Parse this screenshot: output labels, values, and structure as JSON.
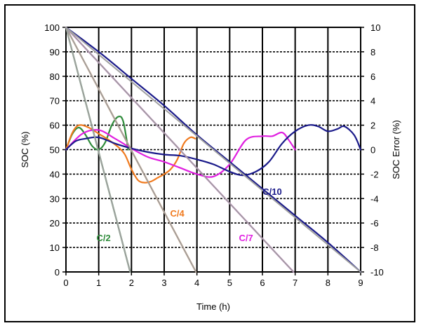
{
  "chart_data": {
    "type": "line",
    "title": "",
    "xlabel": "Time (h)",
    "ylabel": "SOC (%)",
    "y2label": "SOC Error (%)",
    "xlim": [
      0,
      9
    ],
    "ylim": [
      0,
      100
    ],
    "y2lim": [
      -10,
      10
    ],
    "grid": true,
    "xticks": [
      0,
      1,
      2,
      3,
      4,
      5,
      6,
      7,
      8,
      9
    ],
    "yticks": [
      0,
      10,
      20,
      30,
      40,
      50,
      60,
      70,
      80,
      90,
      100
    ],
    "y2ticks": [
      -10,
      -8,
      -6,
      -4,
      -2,
      0,
      2,
      4,
      6,
      8,
      10
    ],
    "series": [
      {
        "name": "C/2",
        "label": "C/2",
        "color": "#2e8b3a",
        "axis": "left",
        "x": [
          0,
          1.96
        ],
        "y": [
          100,
          0
        ]
      },
      {
        "name": "C/2 reference",
        "color": "#a0a0a0",
        "axis": "left",
        "x": [
          0,
          1.96
        ],
        "y": [
          100,
          0
        ]
      },
      {
        "name": "C/4",
        "label": "C/4",
        "color": "#f07a1e",
        "axis": "left",
        "x": [
          0,
          3.97
        ],
        "y": [
          100,
          0
        ]
      },
      {
        "name": "C/4 reference",
        "color": "#a0a0a0",
        "axis": "left",
        "x": [
          0,
          3.97
        ],
        "y": [
          100,
          0
        ]
      },
      {
        "name": "C/7",
        "label": "C/7",
        "color": "#e020e0",
        "axis": "left",
        "x": [
          0,
          6.95
        ],
        "y": [
          100,
          0
        ]
      },
      {
        "name": "C/7 reference",
        "color": "#a0a0a0",
        "axis": "left",
        "x": [
          0,
          6.95
        ],
        "y": [
          100,
          0
        ]
      },
      {
        "name": "C/10",
        "label": "C/10",
        "color": "#1a1a8a",
        "axis": "left",
        "x": [
          0,
          1,
          2,
          3,
          4,
          5,
          6,
          7,
          8,
          9
        ],
        "y": [
          100,
          90,
          79,
          68,
          56,
          45,
          34,
          23,
          12,
          0
        ]
      },
      {
        "name": "C/10 reference",
        "color": "#a0a0a0",
        "axis": "left",
        "x": [
          0,
          9
        ],
        "y": [
          100,
          0
        ]
      },
      {
        "name": "C/2 error",
        "color": "#2e8b3a",
        "axis": "right",
        "x": [
          0,
          0.2,
          0.4,
          0.6,
          0.8,
          1.0,
          1.2,
          1.4,
          1.6,
          1.75,
          1.9
        ],
        "y": [
          0,
          1.3,
          1.8,
          1.2,
          0.3,
          0,
          0.6,
          2.0,
          2.7,
          2.3,
          0
        ]
      },
      {
        "name": "C/4 error",
        "color": "#f07a1e",
        "axis": "right",
        "x": [
          0,
          0.2,
          0.4,
          0.7,
          1.0,
          1.3,
          1.6,
          1.8,
          2.0,
          2.2,
          2.4,
          2.6,
          2.8,
          3.0,
          3.2,
          3.4,
          3.6,
          3.8,
          3.95
        ],
        "y": [
          0,
          1.4,
          2.0,
          1.8,
          1.3,
          0.8,
          0.2,
          -0.4,
          -1.6,
          -2.5,
          -2.7,
          -2.6,
          -2.3,
          -2.0,
          -1.6,
          -0.8,
          0.5,
          1.0,
          0.9
        ]
      },
      {
        "name": "C/7 error",
        "color": "#e020e0",
        "axis": "right",
        "x": [
          0,
          0.5,
          1.0,
          1.5,
          2.0,
          2.5,
          3.0,
          3.5,
          4.0,
          4.5,
          5.0,
          5.5,
          6.0,
          6.3,
          6.6,
          6.8,
          7.0
        ],
        "y": [
          0,
          1.3,
          1.6,
          0.9,
          0.1,
          -0.6,
          -1.0,
          -1.5,
          -2.0,
          -2.2,
          -1.2,
          0.8,
          1.1,
          1.1,
          1.4,
          0.8,
          0
        ]
      },
      {
        "name": "C/10 error",
        "color": "#1a1a8a",
        "axis": "right",
        "x": [
          0,
          0.3,
          0.6,
          1.0,
          1.5,
          2.0,
          2.5,
          3.0,
          3.5,
          4.0,
          4.5,
          5.0,
          5.4,
          5.8,
          6.2,
          6.6,
          7.0,
          7.4,
          7.7,
          8.0,
          8.3,
          8.5,
          8.8,
          9.0
        ],
        "y": [
          0,
          0.7,
          0.9,
          1.0,
          0.5,
          0.1,
          -0.2,
          -0.4,
          -0.5,
          -0.8,
          -1.2,
          -1.8,
          -2.1,
          -1.8,
          -1.0,
          0.5,
          1.5,
          2.0,
          1.9,
          1.5,
          1.7,
          1.9,
          1.2,
          0
        ]
      }
    ],
    "annotations": [
      {
        "text": "C/2",
        "color": "#2e8b3a",
        "x": 1.15,
        "y": 14
      },
      {
        "text": "C/4",
        "color": "#f07a1e",
        "x": 3.4,
        "y": 24
      },
      {
        "text": "C/7",
        "color": "#e020e0",
        "x": 5.5,
        "y": 14
      },
      {
        "text": "C/10",
        "color": "#1a1a8a",
        "x": 6.3,
        "y": 33
      }
    ]
  }
}
